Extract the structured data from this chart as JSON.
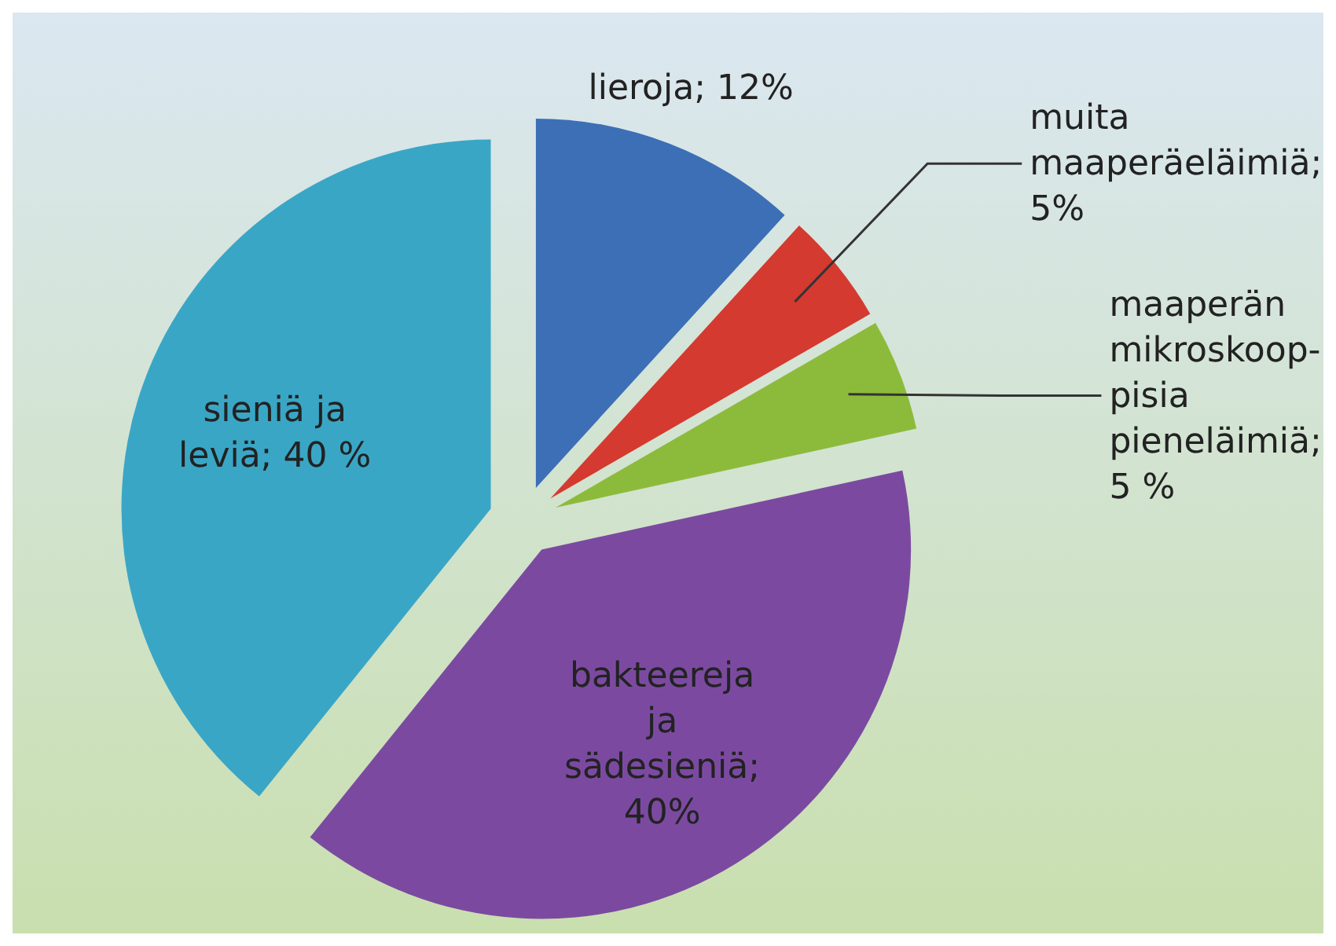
{
  "chart_data": {
    "type": "pie",
    "categories": [
      "lieroja; 12%",
      "muita maaperäeläimiä; 5%",
      "maaperän mikroskoop- pisia pieneläimiä; 5 %",
      "bakteereja ja sädesieniä; 40%",
      "sieniä ja leviä; 40 %"
    ],
    "values": [
      12,
      5,
      5,
      40,
      40
    ],
    "colors": [
      "#3c6fb6",
      "#d43a2f",
      "#8cbb3c",
      "#7b4aa0",
      "#3aa6c6"
    ],
    "legend": false
  }
}
